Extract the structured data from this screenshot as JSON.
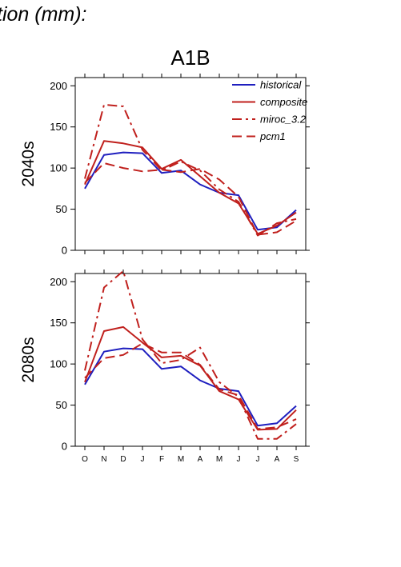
{
  "header_title": "tion (mm):",
  "scenario": "A1B",
  "colors": {
    "historical": "#1f1fbf",
    "model": "#c0201d",
    "axis": "#000000"
  },
  "chart_data": [
    {
      "type": "line",
      "panel_label": "2040s",
      "x": [
        "O",
        "N",
        "D",
        "J",
        "F",
        "M",
        "A",
        "M",
        "J",
        "J",
        "A",
        "S"
      ],
      "ylim": [
        0,
        210
      ],
      "yticks": [
        0,
        50,
        100,
        150,
        200
      ],
      "legend_position": "top-right",
      "series": [
        {
          "name": "historical",
          "style": "solid",
          "color": "#1f1fbf",
          "values": [
            75,
            116,
            119,
            118,
            94,
            97,
            80,
            70,
            67,
            25,
            28,
            49
          ]
        },
        {
          "name": "composite",
          "style": "solid",
          "color": "#c0201d",
          "values": [
            80,
            133,
            130,
            125,
            99,
            110,
            90,
            70,
            57,
            20,
            30,
            46
          ]
        },
        {
          "name": "miroc_3.2",
          "style": "dashdot",
          "color": "#c0201d",
          "values": [
            87,
            177,
            175,
            122,
            97,
            108,
            97,
            74,
            59,
            18,
            33,
            38
          ]
        },
        {
          "name": "pcm1",
          "style": "dashed",
          "color": "#c0201d",
          "values": [
            82,
            106,
            100,
            96,
            98,
            95,
            99,
            86,
            65,
            19,
            22,
            36
          ]
        }
      ]
    },
    {
      "type": "line",
      "panel_label": "2080s",
      "x": [
        "O",
        "N",
        "D",
        "J",
        "F",
        "M",
        "A",
        "M",
        "J",
        "J",
        "A",
        "S"
      ],
      "xticklabels": [
        "O",
        "N",
        "D",
        "J",
        "F",
        "M",
        "A",
        "M",
        "J",
        "J",
        "A",
        "S"
      ],
      "ylim": [
        0,
        210
      ],
      "yticks": [
        0,
        50,
        100,
        150,
        200
      ],
      "series": [
        {
          "name": "historical",
          "style": "solid",
          "color": "#1f1fbf",
          "values": [
            75,
            115,
            119,
            118,
            94,
            97,
            80,
            70,
            67,
            25,
            28,
            49
          ]
        },
        {
          "name": "composite",
          "style": "solid",
          "color": "#c0201d",
          "values": [
            78,
            140,
            145,
            126,
            108,
            110,
            98,
            67,
            57,
            20,
            21,
            44
          ]
        },
        {
          "name": "miroc_3.2",
          "style": "dashdot",
          "color": "#c0201d",
          "values": [
            92,
            193,
            213,
            130,
            101,
            105,
            120,
            78,
            60,
            9,
            9,
            27
          ]
        },
        {
          "name": "pcm1",
          "style": "dashed",
          "color": "#c0201d",
          "values": [
            83,
            107,
            111,
            125,
            114,
            114,
            99,
            69,
            62,
            21,
            23,
            33
          ]
        }
      ]
    }
  ]
}
